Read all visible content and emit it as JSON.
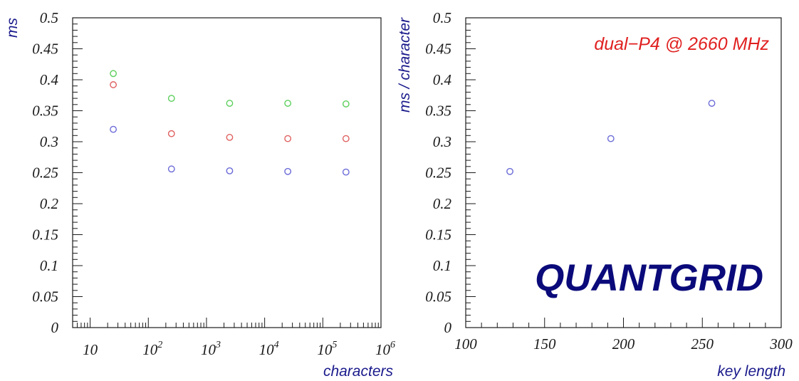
{
  "chart_data": [
    {
      "type": "scatter",
      "xscale": "log",
      "xlim": [
        5,
        1000000
      ],
      "ylim": [
        0,
        0.5
      ],
      "xlabel": "characters",
      "ylabel": "ms",
      "yticks": [
        "0",
        "0.05",
        "0.1",
        "0.15",
        "0.2",
        "0.25",
        "0.3",
        "0.35",
        "0.4",
        "0.45",
        "0.5"
      ],
      "xticks": [
        {
          "base": "10",
          "exp": ""
        },
        {
          "base": "10",
          "exp": "2"
        },
        {
          "base": "10",
          "exp": "3"
        },
        {
          "base": "10",
          "exp": "4"
        },
        {
          "base": "10",
          "exp": "5"
        },
        {
          "base": "10",
          "exp": "6"
        }
      ],
      "marker": "open-circle",
      "series": [
        {
          "color": "#5ccf5c",
          "x": [
            25,
            250,
            2500,
            25000,
            250000
          ],
          "y": [
            0.41,
            0.37,
            0.362,
            0.362,
            0.361
          ]
        },
        {
          "color": "#e06060",
          "x": [
            25,
            250,
            2500,
            25000,
            250000
          ],
          "y": [
            0.392,
            0.313,
            0.307,
            0.305,
            0.305
          ]
        },
        {
          "color": "#6a6ad8",
          "x": [
            25,
            250,
            2500,
            25000,
            250000
          ],
          "y": [
            0.32,
            0.256,
            0.253,
            0.252,
            0.251
          ]
        }
      ]
    },
    {
      "type": "scatter",
      "xlim": [
        100,
        300
      ],
      "ylim": [
        0,
        0.5
      ],
      "xlabel": "key length",
      "ylabel": "ms / character",
      "yticks": [
        "0",
        "0.05",
        "0.1",
        "0.15",
        "0.2",
        "0.25",
        "0.3",
        "0.35",
        "0.4",
        "0.45",
        "0.5"
      ],
      "xticks": [
        "100",
        "150",
        "200",
        "250",
        "300"
      ],
      "marker": "open-circle",
      "series": [
        {
          "color": "#6a6ad8",
          "x": [
            128,
            192,
            256
          ],
          "y": [
            0.252,
            0.305,
            0.362
          ]
        }
      ],
      "annotations": [
        {
          "text": "dual−P4 @ 2660 MHz",
          "color": "#e02020"
        }
      ]
    }
  ],
  "logo": {
    "text": "QUANTGRID",
    "color": "#0a0a7a"
  }
}
